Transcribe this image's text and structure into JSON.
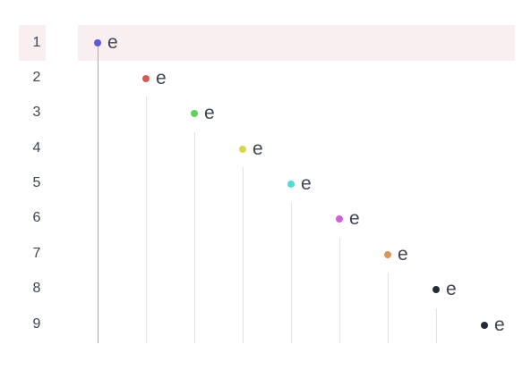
{
  "outline": {
    "active_line": "1",
    "rows": [
      {
        "line_number": "1",
        "text": "e",
        "bullet_color": "#5a59d8"
      },
      {
        "line_number": "2",
        "text": "e",
        "bullet_color": "#d85a52"
      },
      {
        "line_number": "3",
        "text": "e",
        "bullet_color": "#5bd35c"
      },
      {
        "line_number": "4",
        "text": "e",
        "bullet_color": "#d9d54b"
      },
      {
        "line_number": "5",
        "text": "e",
        "bullet_color": "#52d9d8"
      },
      {
        "line_number": "6",
        "text": "e",
        "bullet_color": "#d45ddd"
      },
      {
        "line_number": "7",
        "text": "e",
        "bullet_color": "#de9456"
      },
      {
        "line_number": "8",
        "text": "e",
        "bullet_color": "#262b36"
      },
      {
        "line_number": "9",
        "text": "e",
        "bullet_color": "#262b36"
      }
    ]
  },
  "colors": {
    "highlight": "#f9eef0",
    "line_number": "#3e4450",
    "text": "#3f4653",
    "guide": "#e1e3e8",
    "active_guide": "#a9adb6"
  }
}
